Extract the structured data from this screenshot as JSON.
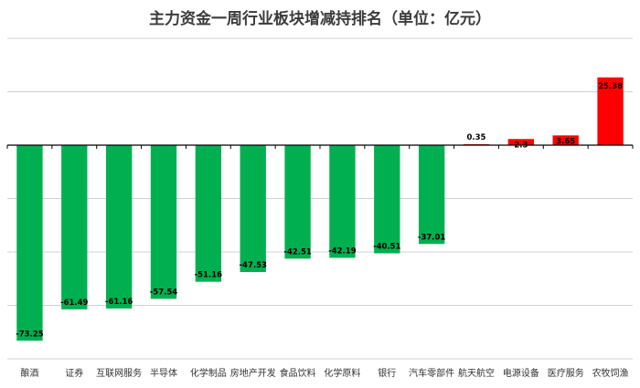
{
  "colors": {
    "positive": "#ff0000",
    "negative": "#00b050",
    "grid": "#d0d0d0",
    "zero_axis": "#000000",
    "label_text": "#000000",
    "title_text": "#3b3b3b"
  },
  "chart_data": {
    "type": "bar",
    "title": "主力资金一周行业板块增减持排名（单位：亿元）",
    "categories": [
      "酿酒",
      "证券",
      "互联网服务",
      "半导体",
      "化学制品",
      "房地产开发",
      "食品饮料",
      "化学原料",
      "银行",
      "汽车零部件",
      "航天航空",
      "电源设备",
      "医疗服务",
      "农牧饲渔"
    ],
    "values": [
      -73.25,
      -61.49,
      -61.16,
      -57.54,
      -51.16,
      -47.53,
      -42.51,
      -42.19,
      -40.51,
      -37.01,
      0.35,
      2.3,
      3.65,
      25.38
    ],
    "data_labels": [
      "-73.25",
      "-61.49",
      "-61.16",
      "-57.54",
      "-51.16",
      "-47.53",
      "-42.51",
      "-42.19",
      "-40.51",
      "-37.01",
      "0.35",
      "2.3",
      "3.65",
      "25.38"
    ],
    "ylim": [
      -80,
      40
    ],
    "gridline_step": 20,
    "grid": true,
    "legend": "none",
    "xlabel": "",
    "ylabel": ""
  }
}
